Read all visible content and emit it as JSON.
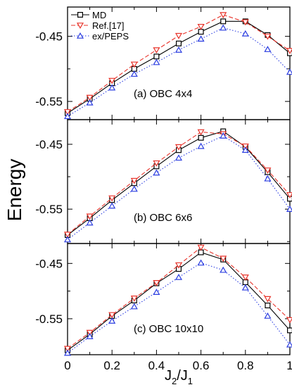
{
  "chart_data": {
    "type": "line",
    "ylabel": "Energy",
    "xlabel_main": "J",
    "xlabel_sub1": "2",
    "xlabel_slash": "/J",
    "xlabel_sub2": "1",
    "xlim": [
      0,
      1
    ],
    "x_ticks": [
      0,
      0.2,
      0.4,
      0.6,
      0.8,
      1
    ],
    "x_tick_labels": [
      "0",
      "0.2",
      "0.4",
      "0.6",
      "0.8",
      "1"
    ],
    "y_ticks": [
      -0.45,
      -0.55
    ],
    "y_tick_labels": [
      "-0.45",
      "-0.55"
    ],
    "legend": {
      "placement": "top-left of panel (a)",
      "entries": [
        {
          "name": "MD",
          "color": "#000000",
          "marker": "square",
          "line": "solid"
        },
        {
          "name": "Ref.[17]",
          "color": "#e8332a",
          "marker": "triangle-down",
          "line": "dashed"
        },
        {
          "name": "ex/PEPS",
          "color": "#2a3ce0",
          "marker": "triangle-up",
          "line": "dotted"
        }
      ]
    },
    "panels": [
      {
        "label": "(a) OBC 4x4",
        "ylim": [
          -0.578,
          -0.405
        ],
        "series": [
          {
            "name": "MD",
            "x": [
              0,
              0.1,
              0.2,
              0.3,
              0.4,
              0.5,
              0.6,
              0.7,
              0.8,
              0.9,
              1.0
            ],
            "values": [
              -0.568,
              -0.546,
              -0.522,
              -0.5,
              -0.481,
              -0.461,
              -0.443,
              -0.427,
              -0.427,
              -0.448,
              -0.476
            ]
          },
          {
            "name": "Ref.[17]",
            "x": [
              0,
              0.1,
              0.2,
              0.3,
              0.4,
              0.5,
              0.6,
              0.7,
              0.8,
              0.9,
              1.0
            ],
            "values": [
              -0.566,
              -0.544,
              -0.518,
              -0.493,
              -0.471,
              -0.449,
              -0.435,
              -0.417,
              -0.428,
              -0.45,
              -0.472
            ]
          },
          {
            "name": "ex/PEPS",
            "x": [
              0,
              0.1,
              0.2,
              0.3,
              0.4,
              0.5,
              0.6,
              0.7,
              0.8,
              0.9,
              1.0
            ],
            "values": [
              -0.573,
              -0.552,
              -0.529,
              -0.508,
              -0.49,
              -0.471,
              -0.454,
              -0.437,
              -0.446,
              -0.47,
              -0.505
            ]
          }
        ]
      },
      {
        "label": "(b) OBC 6x6",
        "ylim": [
          -0.603,
          -0.412
        ],
        "series": [
          {
            "name": "MD",
            "x": [
              0,
              0.1,
              0.2,
              0.3,
              0.4,
              0.5,
              0.6,
              0.7,
              0.8,
              0.9,
              1.0
            ],
            "values": [
              -0.59,
              -0.564,
              -0.536,
              -0.51,
              -0.484,
              -0.459,
              -0.44,
              -0.43,
              -0.454,
              -0.493,
              -0.534
            ]
          },
          {
            "name": "Ref.[17]",
            "x": [
              0,
              0.1,
              0.2,
              0.3,
              0.4,
              0.5,
              0.6,
              0.7,
              0.8,
              0.9,
              1.0
            ],
            "values": [
              -0.589,
              -0.561,
              -0.533,
              -0.506,
              -0.479,
              -0.454,
              -0.431,
              -0.434,
              -0.453,
              -0.49,
              -0.528
            ]
          },
          {
            "name": "ex/PEPS",
            "x": [
              0,
              0.1,
              0.2,
              0.3,
              0.4,
              0.5,
              0.6,
              0.7,
              0.8,
              0.9,
              1.0
            ],
            "values": [
              -0.597,
              -0.571,
              -0.545,
              -0.519,
              -0.494,
              -0.471,
              -0.453,
              -0.437,
              -0.459,
              -0.503,
              -0.55
            ]
          }
        ]
      },
      {
        "label": "(c) OBC 10x10",
        "ylim": [
          -0.615,
          -0.414
        ],
        "series": [
          {
            "name": "MD",
            "x": [
              0,
              0.1,
              0.2,
              0.3,
              0.4,
              0.5,
              0.6,
              0.7,
              0.8,
              0.9,
              1.0
            ],
            "values": [
              -0.607,
              -0.578,
              -0.545,
              -0.517,
              -0.486,
              -0.46,
              -0.43,
              -0.443,
              -0.484,
              -0.526,
              -0.571
            ]
          },
          {
            "name": "Ref.[17]",
            "x": [
              0,
              0.1,
              0.2,
              0.3,
              0.4,
              0.5,
              0.6,
              0.7,
              0.8,
              0.9,
              1.0
            ],
            "values": [
              -0.604,
              -0.575,
              -0.543,
              -0.513,
              -0.485,
              -0.453,
              -0.421,
              -0.441,
              -0.475,
              -0.514,
              -0.552
            ]
          },
          {
            "name": "ex/PEPS",
            "x": [
              0,
              0.1,
              0.2,
              0.3,
              0.4,
              0.5,
              0.6,
              0.7,
              0.8,
              0.9,
              1.0
            ],
            "values": [
              -0.612,
              -0.582,
              -0.554,
              -0.528,
              -0.502,
              -0.475,
              -0.449,
              -0.462,
              -0.494,
              -0.545,
              -0.597
            ]
          }
        ]
      }
    ]
  }
}
